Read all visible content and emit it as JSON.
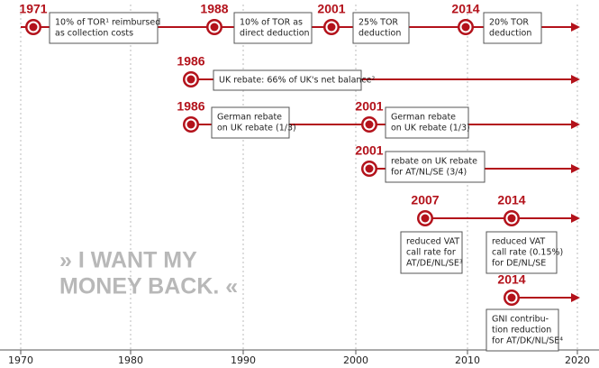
{
  "axis": {
    "ticks": [
      "1970",
      "1980",
      "1990",
      "2000",
      "2010",
      "2020"
    ]
  },
  "slogan": [
    "» I WANT MY",
    "MONEY BACK. «"
  ],
  "rows": [
    {
      "events": [
        {
          "year": "1971",
          "text": [
            "10% of TOR¹ reimbursed",
            "as collection costs"
          ]
        },
        {
          "year": "1988",
          "text": [
            "10% of TOR as",
            "direct deduction"
          ]
        },
        {
          "year": "2001",
          "text": [
            "25% TOR",
            "deduction"
          ]
        },
        {
          "year": "2014",
          "text": [
            "20% TOR",
            "deduction"
          ]
        }
      ]
    },
    {
      "events": [
        {
          "year": "1986",
          "text": [
            "UK rebate: 66% of UK's net balance²"
          ]
        }
      ]
    },
    {
      "events": [
        {
          "year": "1986",
          "text": [
            "German rebate",
            "on UK rebate (1/3)"
          ]
        },
        {
          "year": "2001",
          "text": [
            "German rebate",
            "on UK rebate (1/3)"
          ]
        }
      ]
    },
    {
      "events": [
        {
          "year": "2001",
          "text": [
            "rebate on UK rebate",
            "for AT/NL/SE (3/4)"
          ]
        }
      ]
    },
    {
      "events": [
        {
          "year": "2007",
          "text": [
            "reduced VAT",
            "call rate for",
            "AT/DE/NL/SE³"
          ]
        },
        {
          "year": "2014",
          "text": [
            "reduced VAT",
            "call rate (0.15%)",
            "for DE/NL/SE"
          ]
        }
      ]
    },
    {
      "events": [
        {
          "year": "2014",
          "text": [
            "GNI contribu-",
            "tion reduction",
            "for AT/DK/NL/SE⁴"
          ]
        }
      ]
    }
  ]
}
